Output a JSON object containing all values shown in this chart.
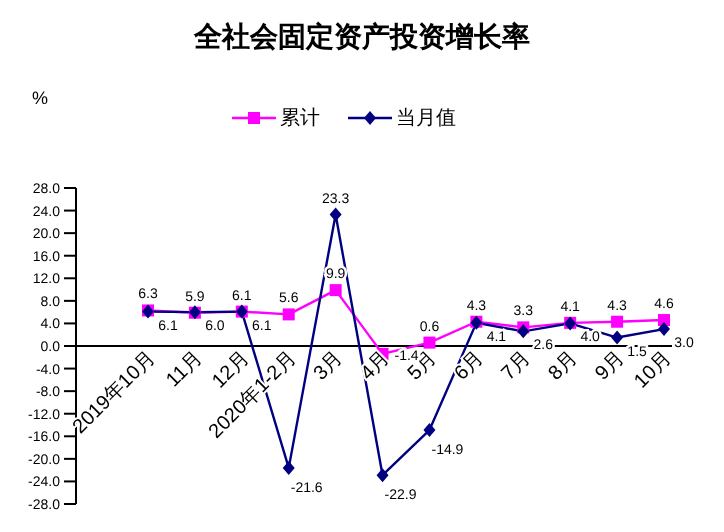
{
  "chart_data": {
    "type": "line",
    "title": "全社会固定资产投资增长率",
    "ylabel": "%",
    "categories": [
      "2019年10月",
      "11月",
      "12月",
      "2020年1-2月",
      "3月",
      "4月",
      "5月",
      "6月",
      "7月",
      "8月",
      "9月",
      "10月"
    ],
    "series": [
      {
        "name": "累计",
        "color": "#ff00ff",
        "marker": "square",
        "values": [
          6.3,
          5.9,
          6.1,
          5.6,
          9.9,
          -1.4,
          0.6,
          4.3,
          3.3,
          4.1,
          4.3,
          4.6
        ],
        "value_labels": [
          "6.3",
          "5.9",
          "6.1",
          "5.6",
          "9.9",
          "-1.4",
          "0.6",
          "4.3",
          "3.3",
          "4.1",
          "4.3",
          "4.6"
        ]
      },
      {
        "name": "当月值",
        "color": "#000080",
        "marker": "diamond",
        "values": [
          6.1,
          6.0,
          6.1,
          -21.6,
          23.3,
          -22.9,
          -14.9,
          4.1,
          2.6,
          4.0,
          1.5,
          3.0
        ],
        "value_labels": [
          "6.1",
          "6.0",
          "6.1",
          "-21.6",
          "23.3",
          "-22.9",
          "-14.9",
          "4.1",
          "2.6",
          "4.0",
          "1.5",
          "3.0"
        ]
      }
    ],
    "ylim": [
      -28,
      28
    ],
    "yticks": [
      {
        "value": -28,
        "label": "-28.0"
      },
      {
        "value": -24,
        "label": "-24.0"
      },
      {
        "value": -20,
        "label": "-20.0"
      },
      {
        "value": -16,
        "label": "-16.0"
      },
      {
        "value": -12,
        "label": "-12.0"
      },
      {
        "value": -8,
        "label": "-8.0"
      },
      {
        "value": -4,
        "label": "-4.0"
      },
      {
        "value": 0,
        "label": "0.0"
      },
      {
        "value": 4,
        "label": "4.0"
      },
      {
        "value": 8,
        "label": "8.0"
      },
      {
        "value": 12,
        "label": "12.0"
      },
      {
        "value": 16,
        "label": "16.0"
      },
      {
        "value": 20,
        "label": "20.0"
      },
      {
        "value": 24,
        "label": "24.0"
      },
      {
        "value": 28,
        "label": "28.0"
      }
    ],
    "grid": false,
    "legend": "top",
    "data_labels": true
  }
}
